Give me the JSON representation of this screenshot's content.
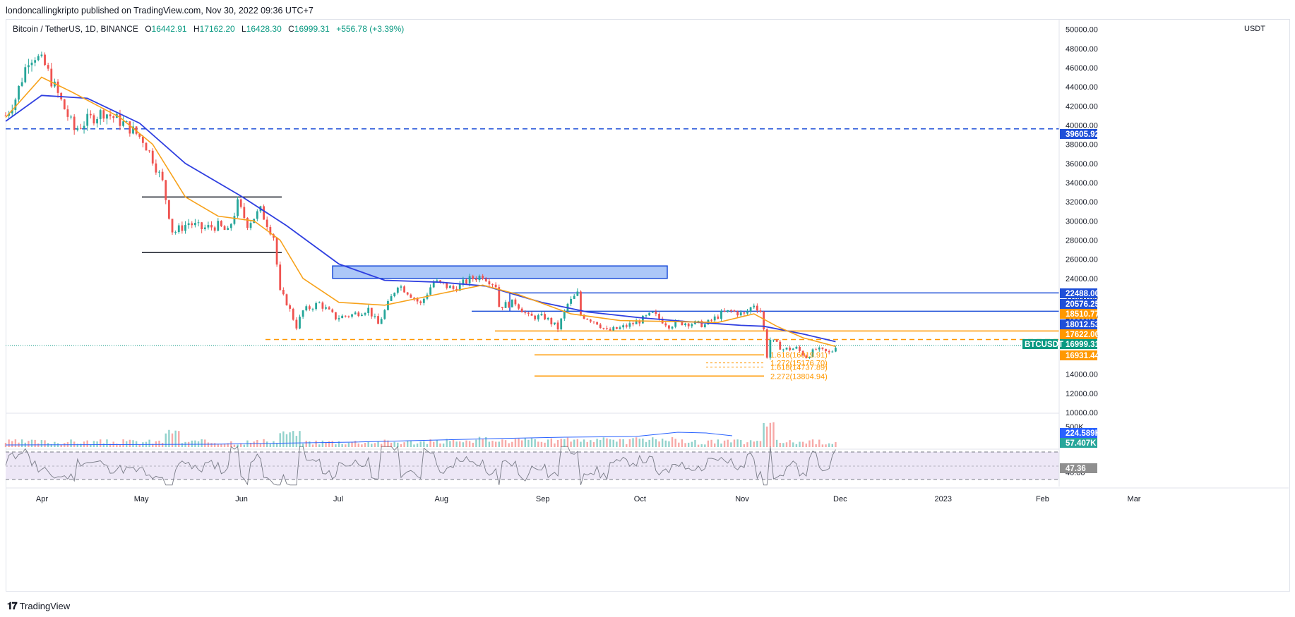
{
  "publisher": "londoncallingkripto published on TradingView.com, Nov 30, 2022 09:36 UTC+7",
  "symbol": {
    "name": "Bitcoin / TetherUS, 1D, BINANCE",
    "open_label": "O",
    "open": "16442.91",
    "high_label": "H",
    "high": "17162.20",
    "low_label": "L",
    "low": "16428.30",
    "close_label": "C",
    "close": "16999.31",
    "change": "+556.78 (+3.39%)"
  },
  "footer": {
    "brand": "TradingView"
  },
  "colors": {
    "up": "#26a69a",
    "down": "#ef5350",
    "ema_fast": "#f7a21b",
    "ema_slow": "#2f3fe0",
    "level_blue": "#1e4fd8",
    "level_orange": "#ff9800",
    "rsi_band": "#ede7f6"
  },
  "chart_data": {
    "type": "candlestick",
    "currency": "USDT",
    "y_ticks": [
      "50000.00",
      "48000.00",
      "46000.00",
      "44000.00",
      "42000.00",
      "40000.00",
      "38000.00",
      "36000.00",
      "34000.00",
      "32000.00",
      "30000.00",
      "28000.00",
      "26000.00",
      "24000.00",
      "22000.00",
      "20000.00",
      "18000.00",
      "16000.00",
      "14000.00",
      "12000.00",
      "10000.00"
    ],
    "x_ticks": [
      "Apr",
      "May",
      "Jun",
      "Jul",
      "Aug",
      "Sep",
      "Oct",
      "Nov",
      "Dec",
      "2023",
      "Feb",
      "Mar"
    ],
    "ylim": [
      10000,
      51000
    ],
    "close_series": [
      [
        "2022-03-21",
        41000
      ],
      [
        "2022-03-24",
        42800
      ],
      [
        "2022-03-28",
        47000
      ],
      [
        "2022-03-30",
        47300
      ],
      [
        "2022-04-02",
        46200
      ],
      [
        "2022-04-06",
        43200
      ],
      [
        "2022-04-11",
        39500
      ],
      [
        "2022-04-15",
        40500
      ],
      [
        "2022-04-20",
        41400
      ],
      [
        "2022-04-25",
        40400
      ],
      [
        "2022-04-28",
        39700
      ],
      [
        "2022-05-02",
        38500
      ],
      [
        "2022-05-05",
        36500
      ],
      [
        "2022-05-08",
        34000
      ],
      [
        "2022-05-11",
        29000
      ],
      [
        "2022-05-12",
        28900
      ],
      [
        "2022-05-16",
        29800
      ],
      [
        "2022-05-20",
        29200
      ],
      [
        "2022-05-25",
        29500
      ],
      [
        "2022-05-28",
        28800
      ],
      [
        "2022-05-31",
        31800
      ],
      [
        "2022-06-03",
        29700
      ],
      [
        "2022-06-07",
        31100
      ],
      [
        "2022-06-11",
        28400
      ],
      [
        "2022-06-13",
        22500
      ],
      [
        "2022-06-15",
        21500
      ],
      [
        "2022-06-18",
        19000
      ],
      [
        "2022-06-20",
        20600
      ],
      [
        "2022-06-25",
        21400
      ],
      [
        "2022-06-30",
        19900
      ],
      [
        "2022-07-05",
        20200
      ],
      [
        "2022-07-10",
        20800
      ],
      [
        "2022-07-13",
        19200
      ],
      [
        "2022-07-19",
        23400
      ],
      [
        "2022-07-22",
        22600
      ],
      [
        "2022-07-26",
        21300
      ],
      [
        "2022-07-30",
        23700
      ],
      [
        "2022-08-05",
        22900
      ],
      [
        "2022-08-10",
        23900
      ],
      [
        "2022-08-14",
        24300
      ],
      [
        "2022-08-18",
        23300
      ],
      [
        "2022-08-19",
        21100
      ],
      [
        "2022-08-24",
        21500
      ],
      [
        "2022-08-28",
        20000
      ],
      [
        "2022-09-02",
        19950
      ],
      [
        "2022-09-06",
        18800
      ],
      [
        "2022-09-09",
        21300
      ],
      [
        "2022-09-12",
        22400
      ],
      [
        "2022-09-13",
        20200
      ],
      [
        "2022-09-18",
        19400
      ],
      [
        "2022-09-21",
        18500
      ],
      [
        "2022-09-25",
        18800
      ],
      [
        "2022-09-30",
        19400
      ],
      [
        "2022-10-05",
        20300
      ],
      [
        "2022-10-10",
        19100
      ],
      [
        "2022-10-13",
        19400
      ],
      [
        "2022-10-18",
        19300
      ],
      [
        "2022-10-21",
        19150
      ],
      [
        "2022-10-26",
        20300
      ],
      [
        "2022-10-29",
        20600
      ],
      [
        "2022-11-02",
        20200
      ],
      [
        "2022-11-05",
        21300
      ],
      [
        "2022-11-07",
        20600
      ],
      [
        "2022-11-08",
        18600
      ],
      [
        "2022-11-09",
        15900
      ],
      [
        "2022-11-10",
        17600
      ],
      [
        "2022-11-14",
        16600
      ],
      [
        "2022-11-18",
        16700
      ],
      [
        "2022-11-21",
        15800
      ],
      [
        "2022-11-24",
        16600
      ],
      [
        "2022-11-28",
        16200
      ],
      [
        "2022-11-29",
        16450
      ],
      [
        "2022-11-30",
        16999
      ]
    ],
    "ema_fast_series": [
      [
        "2022-03-21",
        40800
      ],
      [
        "2022-04-01",
        45000
      ],
      [
        "2022-04-10",
        43500
      ],
      [
        "2022-04-25",
        40800
      ],
      [
        "2022-05-05",
        38000
      ],
      [
        "2022-05-15",
        32500
      ],
      [
        "2022-05-25",
        30500
      ],
      [
        "2022-06-05",
        30000
      ],
      [
        "2022-06-13",
        28000
      ],
      [
        "2022-06-20",
        24000
      ],
      [
        "2022-07-01",
        21500
      ],
      [
        "2022-07-15",
        21200
      ],
      [
        "2022-08-01",
        22400
      ],
      [
        "2022-08-14",
        23300
      ],
      [
        "2022-08-25",
        22300
      ],
      [
        "2022-09-10",
        20300
      ],
      [
        "2022-09-25",
        19600
      ],
      [
        "2022-10-10",
        19500
      ],
      [
        "2022-10-25",
        19400
      ],
      [
        "2022-11-05",
        20300
      ],
      [
        "2022-11-12",
        19000
      ],
      [
        "2022-11-20",
        17800
      ],
      [
        "2022-11-30",
        16900
      ]
    ],
    "ema_slow_series": [
      [
        "2022-03-21",
        40400
      ],
      [
        "2022-04-01",
        43100
      ],
      [
        "2022-04-15",
        42800
      ],
      [
        "2022-05-01",
        40200
      ],
      [
        "2022-05-15",
        36000
      ],
      [
        "2022-06-01",
        32600
      ],
      [
        "2022-06-15",
        29500
      ],
      [
        "2022-07-01",
        25500
      ],
      [
        "2022-07-15",
        23800
      ],
      [
        "2022-08-01",
        23600
      ],
      [
        "2022-08-15",
        23200
      ],
      [
        "2022-09-01",
        21500
      ],
      [
        "2022-09-15",
        20500
      ],
      [
        "2022-10-01",
        19900
      ],
      [
        "2022-10-15",
        19500
      ],
      [
        "2022-11-01",
        19100
      ],
      [
        "2022-11-08",
        19000
      ],
      [
        "2022-11-20",
        18200
      ],
      [
        "2022-11-30",
        17400
      ]
    ],
    "levels": [
      {
        "price_label": "39605.92",
        "style": "dashed",
        "color": "#1e4fd8"
      },
      {
        "price_label": "22488.00",
        "style": "solid",
        "color": "#1e4fd8"
      },
      {
        "price_label": "20576.25",
        "style": "solid",
        "color": "#1e4fd8"
      },
      {
        "price_label": "18510.77",
        "style": "solid",
        "color": "#ff9800"
      },
      {
        "price_label": "17622.00",
        "style": "dashed",
        "color": "#ff9800"
      },
      {
        "price_label": "16931.44",
        "style": "solid",
        "color": "#ff9800"
      }
    ],
    "badges": [
      {
        "text": "39605.92",
        "bg": "#1e4fd8",
        "value": 39605.92
      },
      {
        "text": "22488.00",
        "bg": "#1e4fd8",
        "value": 22488
      },
      {
        "text": "20576.25",
        "bg": "#1e4fd8",
        "value": 20576.25
      },
      {
        "text": "18510.77",
        "bg": "#ff9800",
        "value": 18510.77
      },
      {
        "text": "18012.53",
        "bg": "#1e4fd8",
        "value": 18012.53
      },
      {
        "text": "17622.00",
        "bg": "#ff9800",
        "value": 17622
      },
      {
        "text": "16999.31",
        "bg": "#089981",
        "value": 16999.31
      },
      {
        "text": "16931.44",
        "bg": "#ff9800",
        "value": 16931.44
      }
    ],
    "symbol_badge": "BTCUSDT",
    "fib_labels": [
      {
        "text": "1.618(16019.91)",
        "value": 16019.91
      },
      {
        "text": "1.272(15176.70)",
        "value": 15176.7
      },
      {
        "text": "1.618(14737.89)",
        "value": 14737.89
      },
      {
        "text": "2.272(13804.94)",
        "value": 13804.94
      }
    ],
    "volume": {
      "badges": [
        {
          "text": "224.589K",
          "bg": "#2962ff"
        },
        {
          "text": "57.407K",
          "bg": "#26a69a"
        }
      ],
      "tick": "500K",
      "max_value": 750000
    },
    "rsi": {
      "value": "47.36",
      "tick": "40.00",
      "upper": 70,
      "lower": 30
    }
  }
}
